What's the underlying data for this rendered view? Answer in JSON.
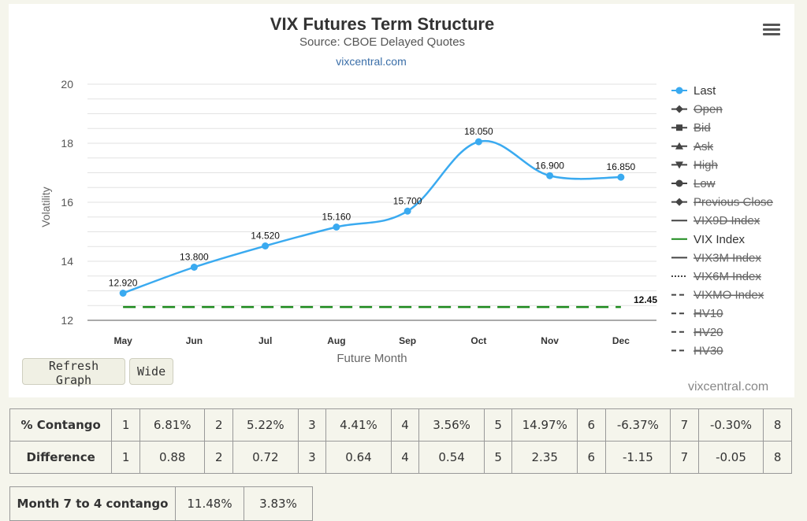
{
  "chart_data": {
    "type": "line",
    "title": "VIX Futures Term Structure",
    "subtitle": "Source: CBOE Delayed Quotes",
    "credit_link": "vixcentral.com",
    "xlabel": "Future Month",
    "ylabel": "Volatility",
    "categories": [
      "May",
      "Jun",
      "Jul",
      "Aug",
      "Sep",
      "Oct",
      "Nov",
      "Dec"
    ],
    "ylim": [
      12,
      20
    ],
    "y_ticks": [
      "20",
      "18",
      "16",
      "14",
      "12"
    ],
    "grid": true,
    "legend_position": "right",
    "series": [
      {
        "name": "Last",
        "values": [
          12.92,
          13.8,
          14.52,
          15.16,
          15.7,
          18.05,
          16.9,
          16.85
        ],
        "labels": [
          "12.920",
          "13.800",
          "14.520",
          "15.160",
          "15.700",
          "18.050",
          "16.900",
          "16.850"
        ],
        "color": "#3aaaf0"
      },
      {
        "name": "VIX Index",
        "values": [
          12.45,
          12.45,
          12.45,
          12.45,
          12.45,
          12.45,
          12.45,
          12.45
        ],
        "end_label": "12.45",
        "color": "#1c8a1c"
      }
    ],
    "legend": [
      {
        "name": "Last",
        "symbol": "circle",
        "active": true
      },
      {
        "name": "Open",
        "symbol": "diamond",
        "active": false
      },
      {
        "name": "Bid",
        "symbol": "square",
        "active": false
      },
      {
        "name": "Ask",
        "symbol": "triangle",
        "active": false
      },
      {
        "name": "High",
        "symbol": "triangle-down",
        "active": false
      },
      {
        "name": "Low",
        "symbol": "circle",
        "active": false
      },
      {
        "name": "Previous Close",
        "symbol": "diamond",
        "active": false
      },
      {
        "name": "VIX9D Index",
        "symbol": "line",
        "active": false
      },
      {
        "name": "VIX Index",
        "symbol": "line",
        "active": true,
        "color": "#1c8a1c"
      },
      {
        "name": "VIX3M Index",
        "symbol": "line",
        "active": false
      },
      {
        "name": "VIX6M Index",
        "symbol": "dotted",
        "active": false
      },
      {
        "name": "VIXMO Index",
        "symbol": "dashed",
        "active": false
      },
      {
        "name": "HV10",
        "symbol": "dashed",
        "active": false
      },
      {
        "name": "HV20",
        "symbol": "dashed",
        "active": false
      },
      {
        "name": "HV30",
        "symbol": "dashed",
        "active": false
      }
    ]
  },
  "controls": {
    "refresh_label": "Refresh Graph",
    "wide_label": "Wide"
  },
  "watermark": "vixcentral.com",
  "contango_table": {
    "rows": [
      {
        "label": "% Contango",
        "cells": [
          [
            "1",
            "6.81%"
          ],
          [
            "2",
            "5.22%"
          ],
          [
            "3",
            "4.41%"
          ],
          [
            "4",
            "3.56%"
          ],
          [
            "5",
            "14.97%"
          ],
          [
            "6",
            "-6.37%"
          ],
          [
            "7",
            "-0.30%"
          ]
        ],
        "last_index": "8"
      },
      {
        "label": "Difference",
        "cells": [
          [
            "1",
            "0.88"
          ],
          [
            "2",
            "0.72"
          ],
          [
            "3",
            "0.64"
          ],
          [
            "4",
            "0.54"
          ],
          [
            "5",
            "2.35"
          ],
          [
            "6",
            "-1.15"
          ],
          [
            "7",
            "-0.05"
          ]
        ],
        "last_index": "8"
      }
    ]
  },
  "month_table": {
    "label": "Month 7 to 4 contango",
    "values": [
      "11.48%",
      "3.83%"
    ]
  }
}
